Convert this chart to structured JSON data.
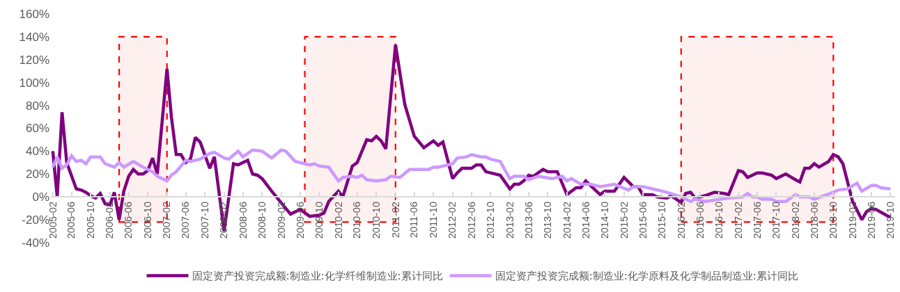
{
  "chart_data": {
    "type": "line",
    "xlim": [
      "2005-01-15",
      "2019-10-31"
    ],
    "ylim": [
      -40,
      160
    ],
    "xticks": [
      {
        "value": "2005-02",
        "label": "2005-02"
      },
      {
        "value": "2005-06",
        "label": "2005-06"
      },
      {
        "value": "2005-10",
        "label": "2005-10"
      },
      {
        "value": "2006-02",
        "label": "2006-02"
      },
      {
        "value": "2006-06",
        "label": "2006-06"
      },
      {
        "value": "2006-10",
        "label": "2006-10"
      },
      {
        "value": "2007-02",
        "label": "2007-02"
      },
      {
        "value": "2007-06",
        "label": "2007-06"
      },
      {
        "value": "2007-10",
        "label": "2007-10"
      },
      {
        "value": "2008-02",
        "label": "2008-02"
      },
      {
        "value": "2008-06",
        "label": "2008-06"
      },
      {
        "value": "2008-10",
        "label": "2008-10"
      },
      {
        "value": "2009-02",
        "label": "2009-02"
      },
      {
        "value": "2009-06",
        "label": "2009-06"
      },
      {
        "value": "2009-10",
        "label": "2009-10"
      },
      {
        "value": "2010-02",
        "label": "2010-02"
      },
      {
        "value": "2010-06",
        "label": "2010-06"
      },
      {
        "value": "2010-10",
        "label": "2010-10"
      },
      {
        "value": "2011-02",
        "label": "2011-02"
      },
      {
        "value": "2011-06",
        "label": "2011-06"
      },
      {
        "value": "2011-10",
        "label": "2011-10"
      },
      {
        "value": "2012-02",
        "label": "2012-02"
      },
      {
        "value": "2012-06",
        "label": "2012-06"
      },
      {
        "value": "2012-10",
        "label": "2012-10"
      },
      {
        "value": "2013-02",
        "label": "2013-02"
      },
      {
        "value": "2013-06",
        "label": "2013-06"
      },
      {
        "value": "2013-10",
        "label": "2013-10"
      },
      {
        "value": "2014-02",
        "label": "2014-02"
      },
      {
        "value": "2014-06",
        "label": "2014-06"
      },
      {
        "value": "2014-10",
        "label": "2014-10"
      },
      {
        "value": "2015-02",
        "label": "2015-02"
      },
      {
        "value": "2015-06",
        "label": "2015-06"
      },
      {
        "value": "2015-10",
        "label": "2015-10"
      },
      {
        "value": "2016-02",
        "label": "2016-02"
      },
      {
        "value": "2016-06",
        "label": "2016-06"
      },
      {
        "value": "2016-10",
        "label": "2016-10"
      },
      {
        "value": "2017-02",
        "label": "2017-02"
      },
      {
        "value": "2017-06",
        "label": "2017-06"
      },
      {
        "value": "2017-10",
        "label": "2017-10"
      },
      {
        "value": "2018-02",
        "label": "2018-02"
      },
      {
        "value": "2018-06",
        "label": "2018-06"
      },
      {
        "value": "2018-10",
        "label": "2018-10"
      },
      {
        "value": "2019-02",
        "label": "2019-02"
      },
      {
        "value": "2019-06",
        "label": "2019-06"
      },
      {
        "value": "2019-10",
        "label": "2019-10"
      }
    ],
    "yticks": [
      {
        "value": -40,
        "label": "-40%"
      },
      {
        "value": -20,
        "label": "-20%"
      },
      {
        "value": 0,
        "label": "0%"
      },
      {
        "value": 20,
        "label": "20%"
      },
      {
        "value": 40,
        "label": "40%"
      },
      {
        "value": 60,
        "label": "60%"
      },
      {
        "value": 80,
        "label": "80%"
      },
      {
        "value": 100,
        "label": "100%"
      },
      {
        "value": 120,
        "label": "120%"
      },
      {
        "value": 140,
        "label": "140%"
      },
      {
        "value": 160,
        "label": "160%"
      }
    ],
    "grid": false,
    "legend": "bottom",
    "bands": [
      {
        "axis": "x",
        "from": "2006-04",
        "to": "2007-02",
        "color": "#ff0000"
      },
      {
        "axis": "x",
        "from": "2009-07",
        "to": "2011-02",
        "color": "#ff0000"
      },
      {
        "axis": "x",
        "from": "2016-02",
        "to": "2018-10",
        "color": "#ff0000"
      }
    ],
    "series": [
      {
        "name": "固定资产投资完成额:制造业:化学纤维制造业:累计同比",
        "color": "#7f007f",
        "x": [
          "2005-02",
          "2005-03",
          "2005-04",
          "2005-05",
          "2005-07",
          "2005-08",
          "2005-09",
          "2005-10",
          "2005-11",
          "2005-12",
          "2006-01",
          "2006-02",
          "2006-03",
          "2006-04",
          "2006-05",
          "2006-06",
          "2006-07",
          "2006-08",
          "2006-09",
          "2006-10",
          "2006-11",
          "2006-12",
          "2007-02",
          "2007-03",
          "2007-04",
          "2007-05",
          "2007-06",
          "2007-07",
          "2007-08",
          "2007-09",
          "2007-11",
          "2007-12",
          "2008-02",
          "2008-04",
          "2008-05",
          "2008-07",
          "2008-08",
          "2008-09",
          "2008-10",
          "2008-12",
          "2009-03",
          "2009-04",
          "2009-06",
          "2009-08",
          "2009-10",
          "2009-11",
          "2009-12",
          "2010-02",
          "2010-03",
          "2010-05",
          "2010-06",
          "2010-08",
          "2010-09",
          "2010-10",
          "2010-11",
          "2010-12",
          "2011-02",
          "2011-04",
          "2011-06",
          "2011-08",
          "2011-10",
          "2011-11",
          "2011-12",
          "2012-02",
          "2012-03",
          "2012-04",
          "2012-06",
          "2012-07",
          "2012-08",
          "2012-09",
          "2012-10",
          "2012-12",
          "2013-02",
          "2013-03",
          "2013-04",
          "2013-05",
          "2013-06",
          "2013-07",
          "2013-09",
          "2013-10",
          "2013-12",
          "2014-02",
          "2014-04",
          "2014-05",
          "2014-06",
          "2014-08",
          "2014-09",
          "2014-10",
          "2014-12",
          "2015-02",
          "2015-04",
          "2015-05",
          "2015-06",
          "2015-08",
          "2015-09",
          "2015-11",
          "2015-12",
          "2016-02",
          "2016-03",
          "2016-04",
          "2016-05",
          "2016-07",
          "2016-09",
          "2016-11",
          "2016-12",
          "2017-02",
          "2017-03",
          "2017-04",
          "2017-06",
          "2017-07",
          "2017-09",
          "2017-10",
          "2017-12",
          "2018-02",
          "2018-03",
          "2018-04",
          "2018-05",
          "2018-06",
          "2018-07",
          "2018-09",
          "2018-10",
          "2018-11",
          "2018-12",
          "2019-02",
          "2019-04",
          "2019-05",
          "2019-06",
          "2019-07",
          "2019-10"
        ],
        "values": [
          40,
          0,
          74,
          30,
          7,
          6,
          4,
          1,
          -1,
          3,
          -6,
          -7,
          4,
          -20,
          5,
          18,
          24,
          20,
          20,
          23,
          34,
          20,
          112,
          70,
          37,
          37,
          30,
          33,
          52,
          48,
          25,
          35,
          -30,
          29,
          28,
          32,
          20,
          19,
          16,
          5,
          -10,
          -15,
          -11,
          -17,
          -16,
          -14,
          -4,
          5,
          0,
          27,
          30,
          50,
          49,
          53,
          49,
          42,
          133,
          81,
          53,
          43,
          49,
          45,
          48,
          16,
          21,
          25,
          25,
          28,
          28,
          22,
          21,
          19,
          7,
          11,
          11,
          14,
          19,
          18,
          24,
          22,
          22,
          2,
          8,
          8,
          14,
          6,
          2,
          5,
          5,
          17,
          9,
          9,
          2,
          2,
          0,
          -1,
          1,
          -5,
          3,
          4,
          -1,
          1,
          4,
          3,
          2,
          23,
          22,
          17,
          21,
          21,
          19,
          16,
          20,
          15,
          13,
          25,
          25,
          29,
          26,
          31,
          37,
          35,
          29,
          -4,
          -20,
          -13,
          -10,
          -11,
          -18
        ]
      },
      {
        "name": "固定资产投资完成额:制造业:化学原料及化学制品制造业:累计同比",
        "color": "#cc99ff",
        "x": [
          "2005-02",
          "2005-03",
          "2005-04",
          "2005-05",
          "2005-06",
          "2005-07",
          "2005-08",
          "2005-09",
          "2005-10",
          "2005-12",
          "2006-01",
          "2006-03",
          "2006-04",
          "2006-05",
          "2006-07",
          "2006-09",
          "2006-11",
          "2006-12",
          "2007-02",
          "2007-03",
          "2007-04",
          "2007-06",
          "2007-07",
          "2007-09",
          "2007-11",
          "2007-12",
          "2008-02",
          "2008-03",
          "2008-05",
          "2008-06",
          "2008-08",
          "2008-10",
          "2008-12",
          "2009-02",
          "2009-03",
          "2009-05",
          "2009-07",
          "2009-08",
          "2009-09",
          "2009-10",
          "2009-12",
          "2010-02",
          "2010-03",
          "2010-05",
          "2010-06",
          "2010-07",
          "2010-08",
          "2010-10",
          "2010-12",
          "2011-01",
          "2011-03",
          "2011-05",
          "2011-07",
          "2011-09",
          "2011-10",
          "2011-11",
          "2012-02",
          "2012-03",
          "2012-05",
          "2012-06",
          "2012-08",
          "2012-09",
          "2012-10",
          "2012-12",
          "2013-02",
          "2013-03",
          "2013-05",
          "2013-06",
          "2013-08",
          "2013-11",
          "2014-01",
          "2014-02",
          "2014-03",
          "2014-05",
          "2014-07",
          "2014-09",
          "2014-12",
          "2015-03",
          "2015-04",
          "2015-06",
          "2015-07",
          "2015-11",
          "2016-02",
          "2016-04",
          "2016-05",
          "2016-07",
          "2016-12",
          "2017-03",
          "2017-04",
          "2017-05",
          "2017-06",
          "2017-07",
          "2017-09",
          "2017-10",
          "2017-12",
          "2018-02",
          "2018-03",
          "2018-05",
          "2018-06",
          "2018-08",
          "2018-10",
          "2018-11",
          "2019-01",
          "2019-03",
          "2019-04",
          "2019-06",
          "2019-07",
          "2019-08",
          "2019-10"
        ],
        "values": [
          26,
          35,
          25,
          28,
          36,
          31,
          32,
          29,
          35,
          35,
          29,
          26,
          30,
          26,
          31,
          26,
          22,
          18,
          14,
          19,
          22,
          32,
          31,
          33,
          38,
          39,
          34,
          33,
          40,
          35,
          41,
          40,
          34,
          41,
          40,
          31,
          29,
          28,
          29,
          27,
          26,
          14,
          17,
          18,
          17,
          19,
          15,
          14,
          15,
          18,
          17,
          24,
          24,
          24,
          26,
          26,
          29,
          34,
          35,
          37,
          35,
          35,
          33,
          31,
          16,
          18,
          18,
          15,
          18,
          16,
          18,
          14,
          16,
          11,
          11,
          9,
          11,
          6,
          9,
          9,
          8,
          4,
          0,
          -4,
          -2,
          -4,
          -1,
          0,
          3,
          0,
          0,
          -2,
          -2,
          -4,
          -4,
          2,
          0,
          0,
          -2,
          1,
          4,
          6,
          7,
          12,
          5,
          10,
          10,
          8,
          7
        ]
      }
    ]
  }
}
